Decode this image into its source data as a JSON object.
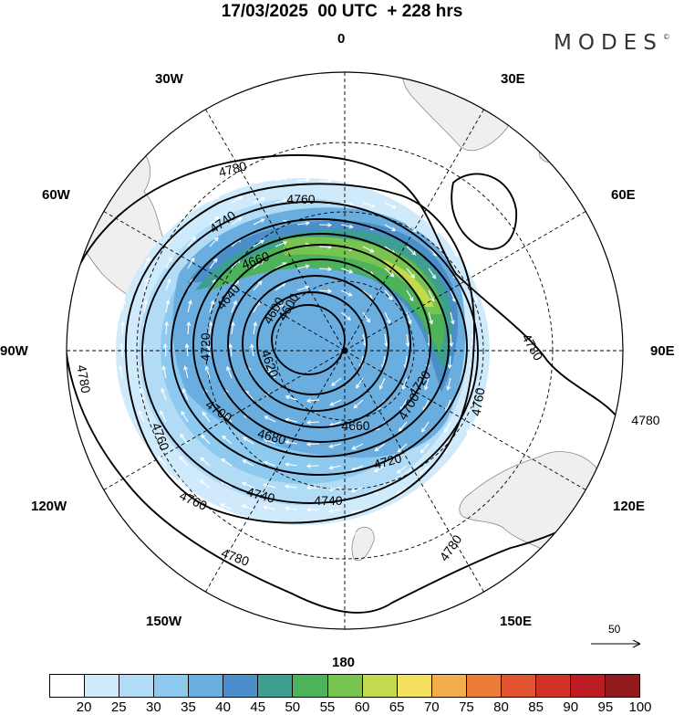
{
  "header": {
    "title": "17/03/2025  00 UTC  + 228 hrs",
    "brand": "MODES",
    "brand_mark": "©"
  },
  "map": {
    "projection": "polar stereographic, south pole centered",
    "longitude_labels": [
      "0",
      "30E",
      "60E",
      "90E",
      "120E",
      "150E",
      "180",
      "150W",
      "120W",
      "90W",
      "60W",
      "30W"
    ],
    "contour_labels": [
      "4780",
      "4780",
      "4780",
      "4780",
      "4780",
      "4780",
      "4760",
      "4760",
      "4760",
      "4760",
      "4740",
      "4740",
      "4740",
      "4720",
      "4720",
      "4720",
      "4700",
      "4700",
      "4680",
      "4660",
      "4660",
      "4640",
      "4620",
      "4600",
      "4600"
    ],
    "vector_reference": "50",
    "colors": {
      "land": "#efefef",
      "coast": "#888888",
      "contour": "#000000",
      "vector": "#ffffff",
      "grid": "#000000"
    }
  },
  "colorbar": {
    "labels": [
      "20",
      "25",
      "30",
      "35",
      "40",
      "45",
      "50",
      "55",
      "60",
      "65",
      "70",
      "75",
      "80",
      "85",
      "90",
      "95",
      "100"
    ],
    "colors": [
      "#ffffff",
      "#cfeafb",
      "#b2dcf6",
      "#8ec9ef",
      "#6aaee0",
      "#4a8fca",
      "#3e9e92",
      "#4db35a",
      "#78c451",
      "#c3da4c",
      "#f5e15e",
      "#f2ae4b",
      "#ee7c39",
      "#e2542f",
      "#d43127",
      "#bc1d25",
      "#951a1e"
    ]
  }
}
